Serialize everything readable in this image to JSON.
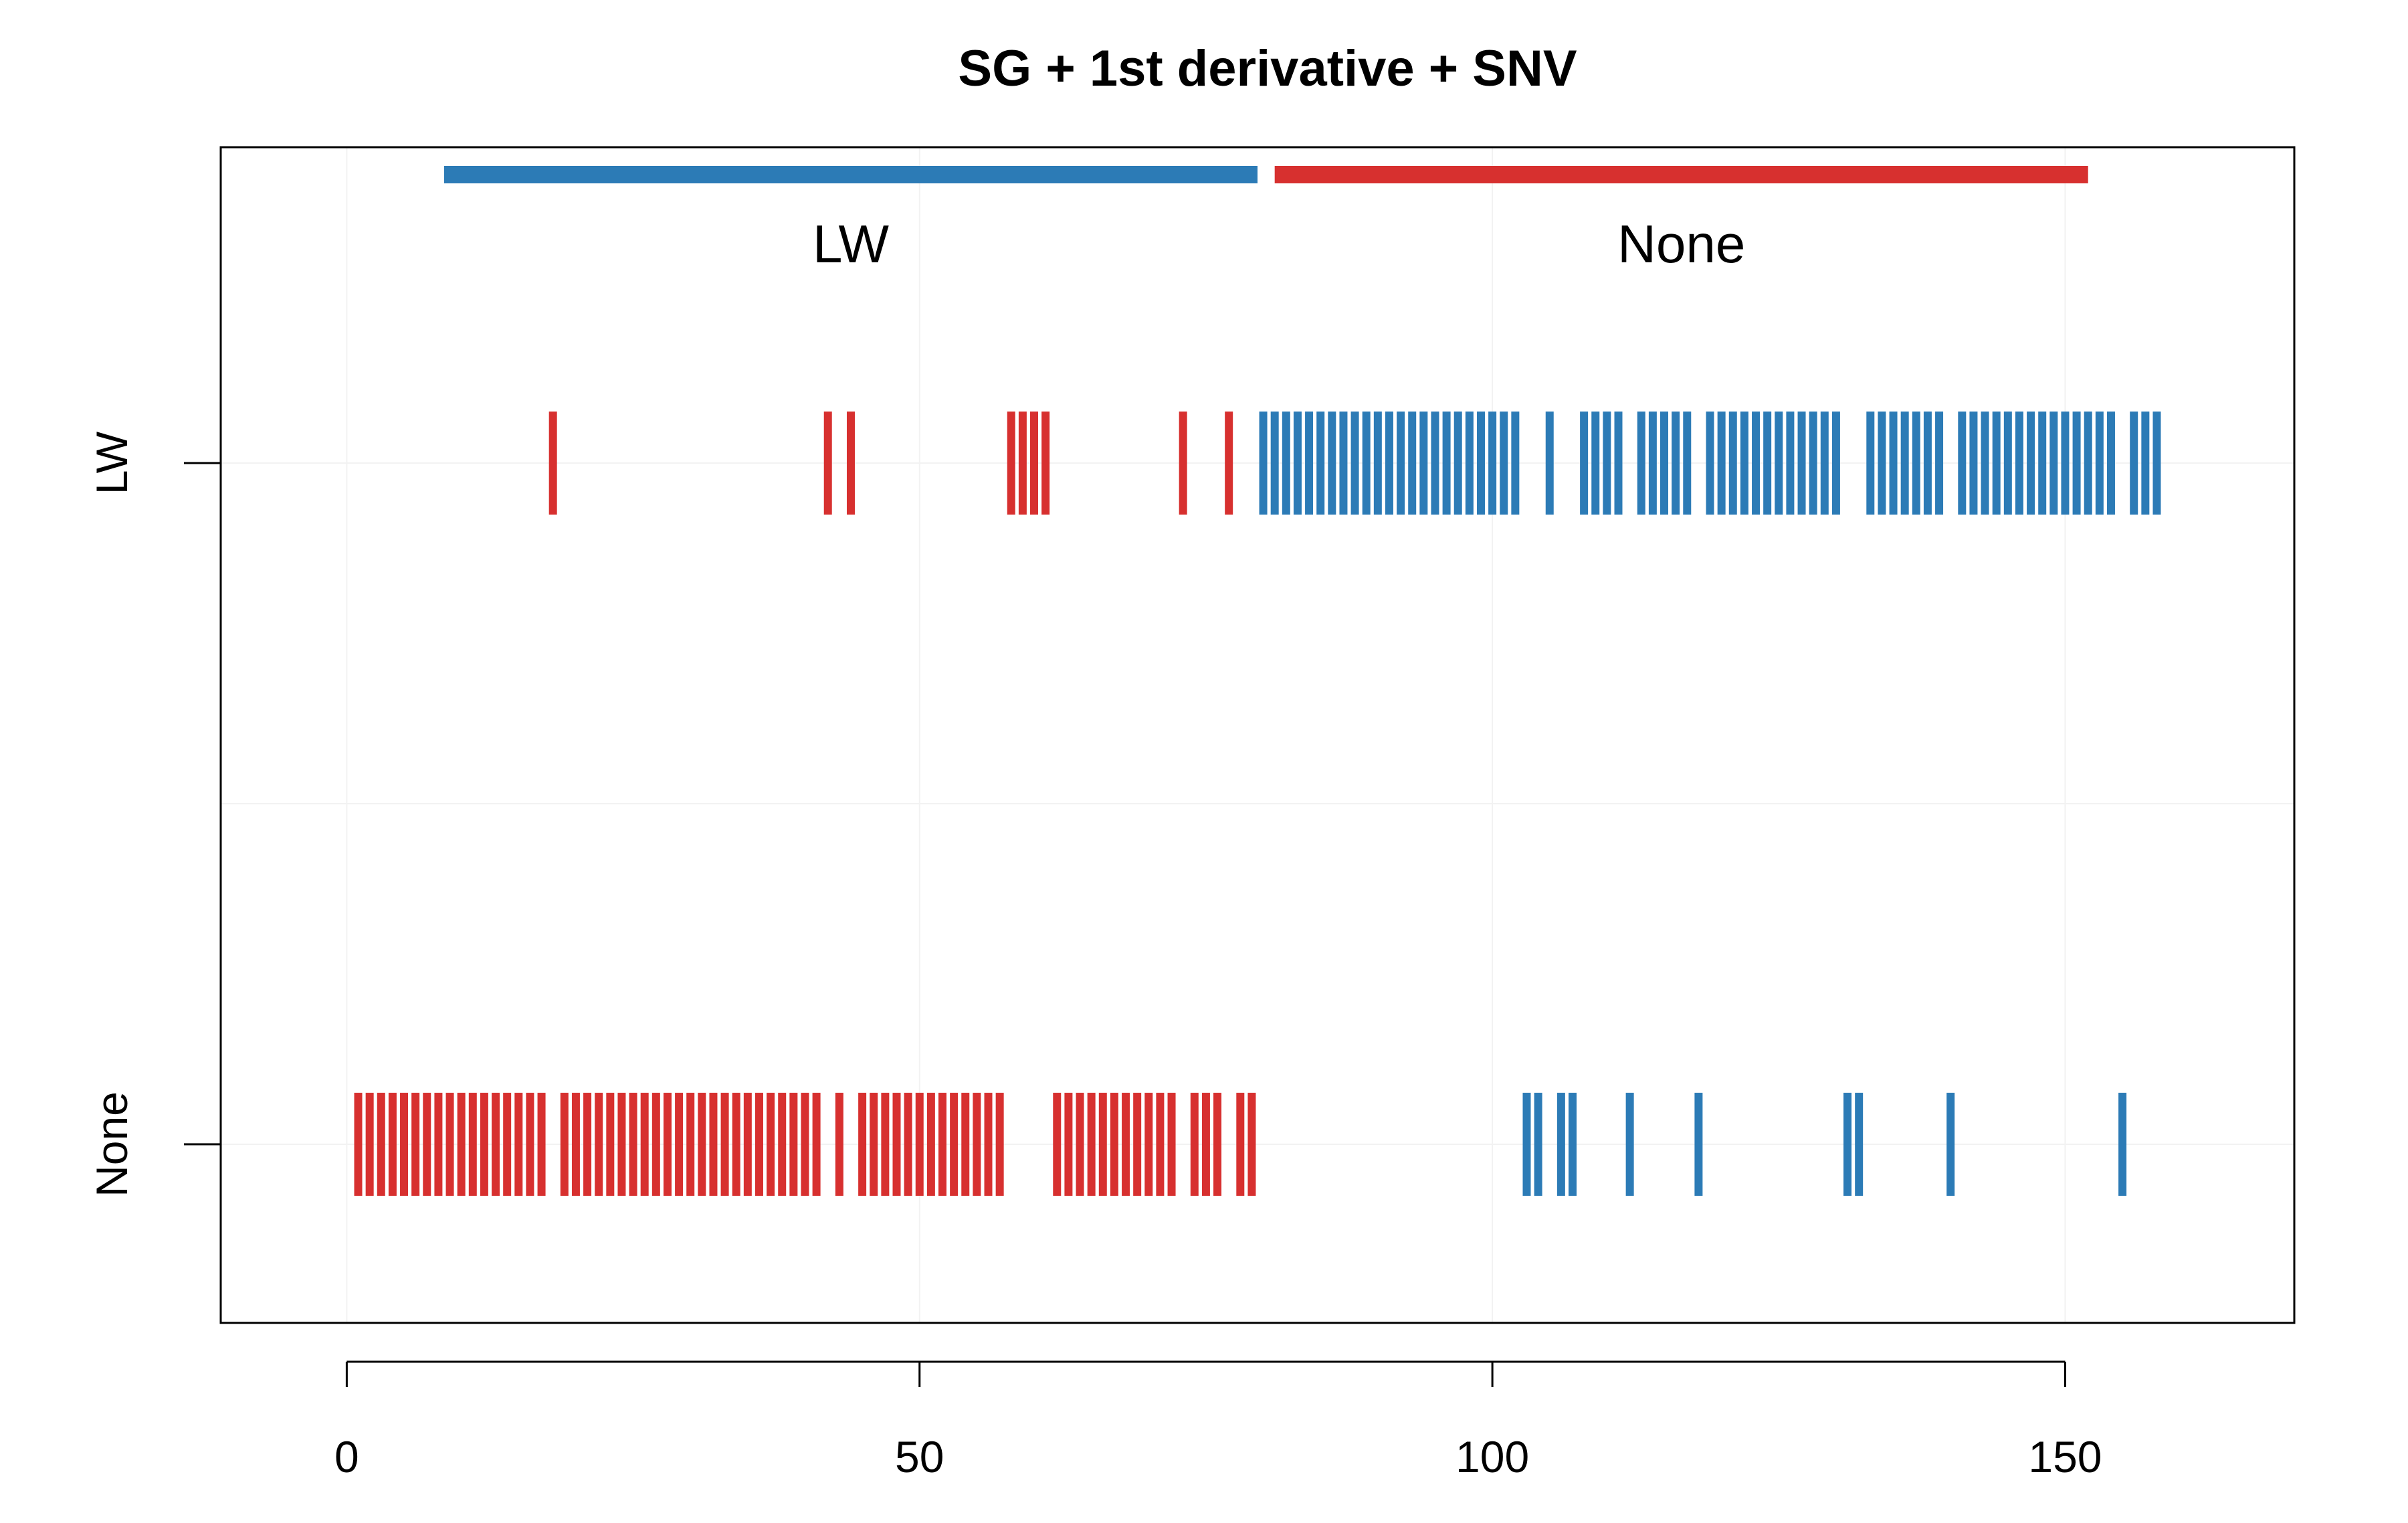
{
  "chart_data": {
    "type": "strip",
    "title": "SG + 1st derivative + SNV",
    "xlabel": "",
    "ylabel": "",
    "xlim": [
      -11,
      170
    ],
    "x_ticks": [
      0,
      50,
      100,
      150
    ],
    "x_tick_labels": [
      "0",
      "50",
      "100",
      "150"
    ],
    "y_categories": [
      "None",
      "LW"
    ],
    "grid": true,
    "colors": {
      "LW": "#2c7bb6",
      "None": "#d7302f"
    },
    "groups": [
      {
        "label": "LW",
        "from": 8.5,
        "to": 79.5,
        "color": "#2c7bb6"
      },
      {
        "label": "None",
        "from": 81,
        "to": 152,
        "color": "#d7302f"
      }
    ],
    "series": [
      {
        "name": "LW",
        "y_category": "LW",
        "color": "#d7302f",
        "x": [
          18,
          42,
          44,
          58,
          59,
          60,
          61,
          73,
          77
        ]
      },
      {
        "name": "LW",
        "y_category": "LW",
        "color": "#2c7bb6",
        "x": [
          80,
          81,
          82,
          83,
          84,
          85,
          86,
          87,
          88,
          89,
          90,
          91,
          92,
          93,
          94,
          95,
          96,
          97,
          98,
          99,
          100,
          101,
          102,
          105,
          108,
          109,
          110,
          111,
          113,
          114,
          115,
          116,
          117,
          119,
          120,
          121,
          122,
          123,
          124,
          125,
          126,
          127,
          128,
          129,
          130,
          133,
          134,
          135,
          136,
          137,
          138,
          139,
          141,
          142,
          143,
          144,
          145,
          146,
          147,
          148,
          149,
          150,
          151,
          152,
          153,
          154,
          156,
          157,
          158
        ]
      },
      {
        "name": "None",
        "y_category": "None",
        "color": "#d7302f",
        "x": [
          1,
          2,
          3,
          4,
          5,
          6,
          7,
          8,
          9,
          10,
          11,
          12,
          13,
          14,
          15,
          16,
          17,
          19,
          20,
          21,
          22,
          23,
          24,
          25,
          26,
          27,
          28,
          29,
          30,
          31,
          32,
          33,
          34,
          35,
          36,
          37,
          38,
          39,
          40,
          41,
          43,
          45,
          46,
          47,
          48,
          49,
          50,
          51,
          52,
          53,
          54,
          55,
          56,
          57,
          62,
          63,
          64,
          65,
          66,
          67,
          68,
          69,
          70,
          71,
          72,
          74,
          75,
          76,
          78,
          79
        ]
      },
      {
        "name": "None",
        "y_category": "None",
        "color": "#2c7bb6",
        "x": [
          103,
          104,
          106,
          107,
          112,
          118,
          131,
          132,
          140,
          155
        ]
      }
    ]
  }
}
